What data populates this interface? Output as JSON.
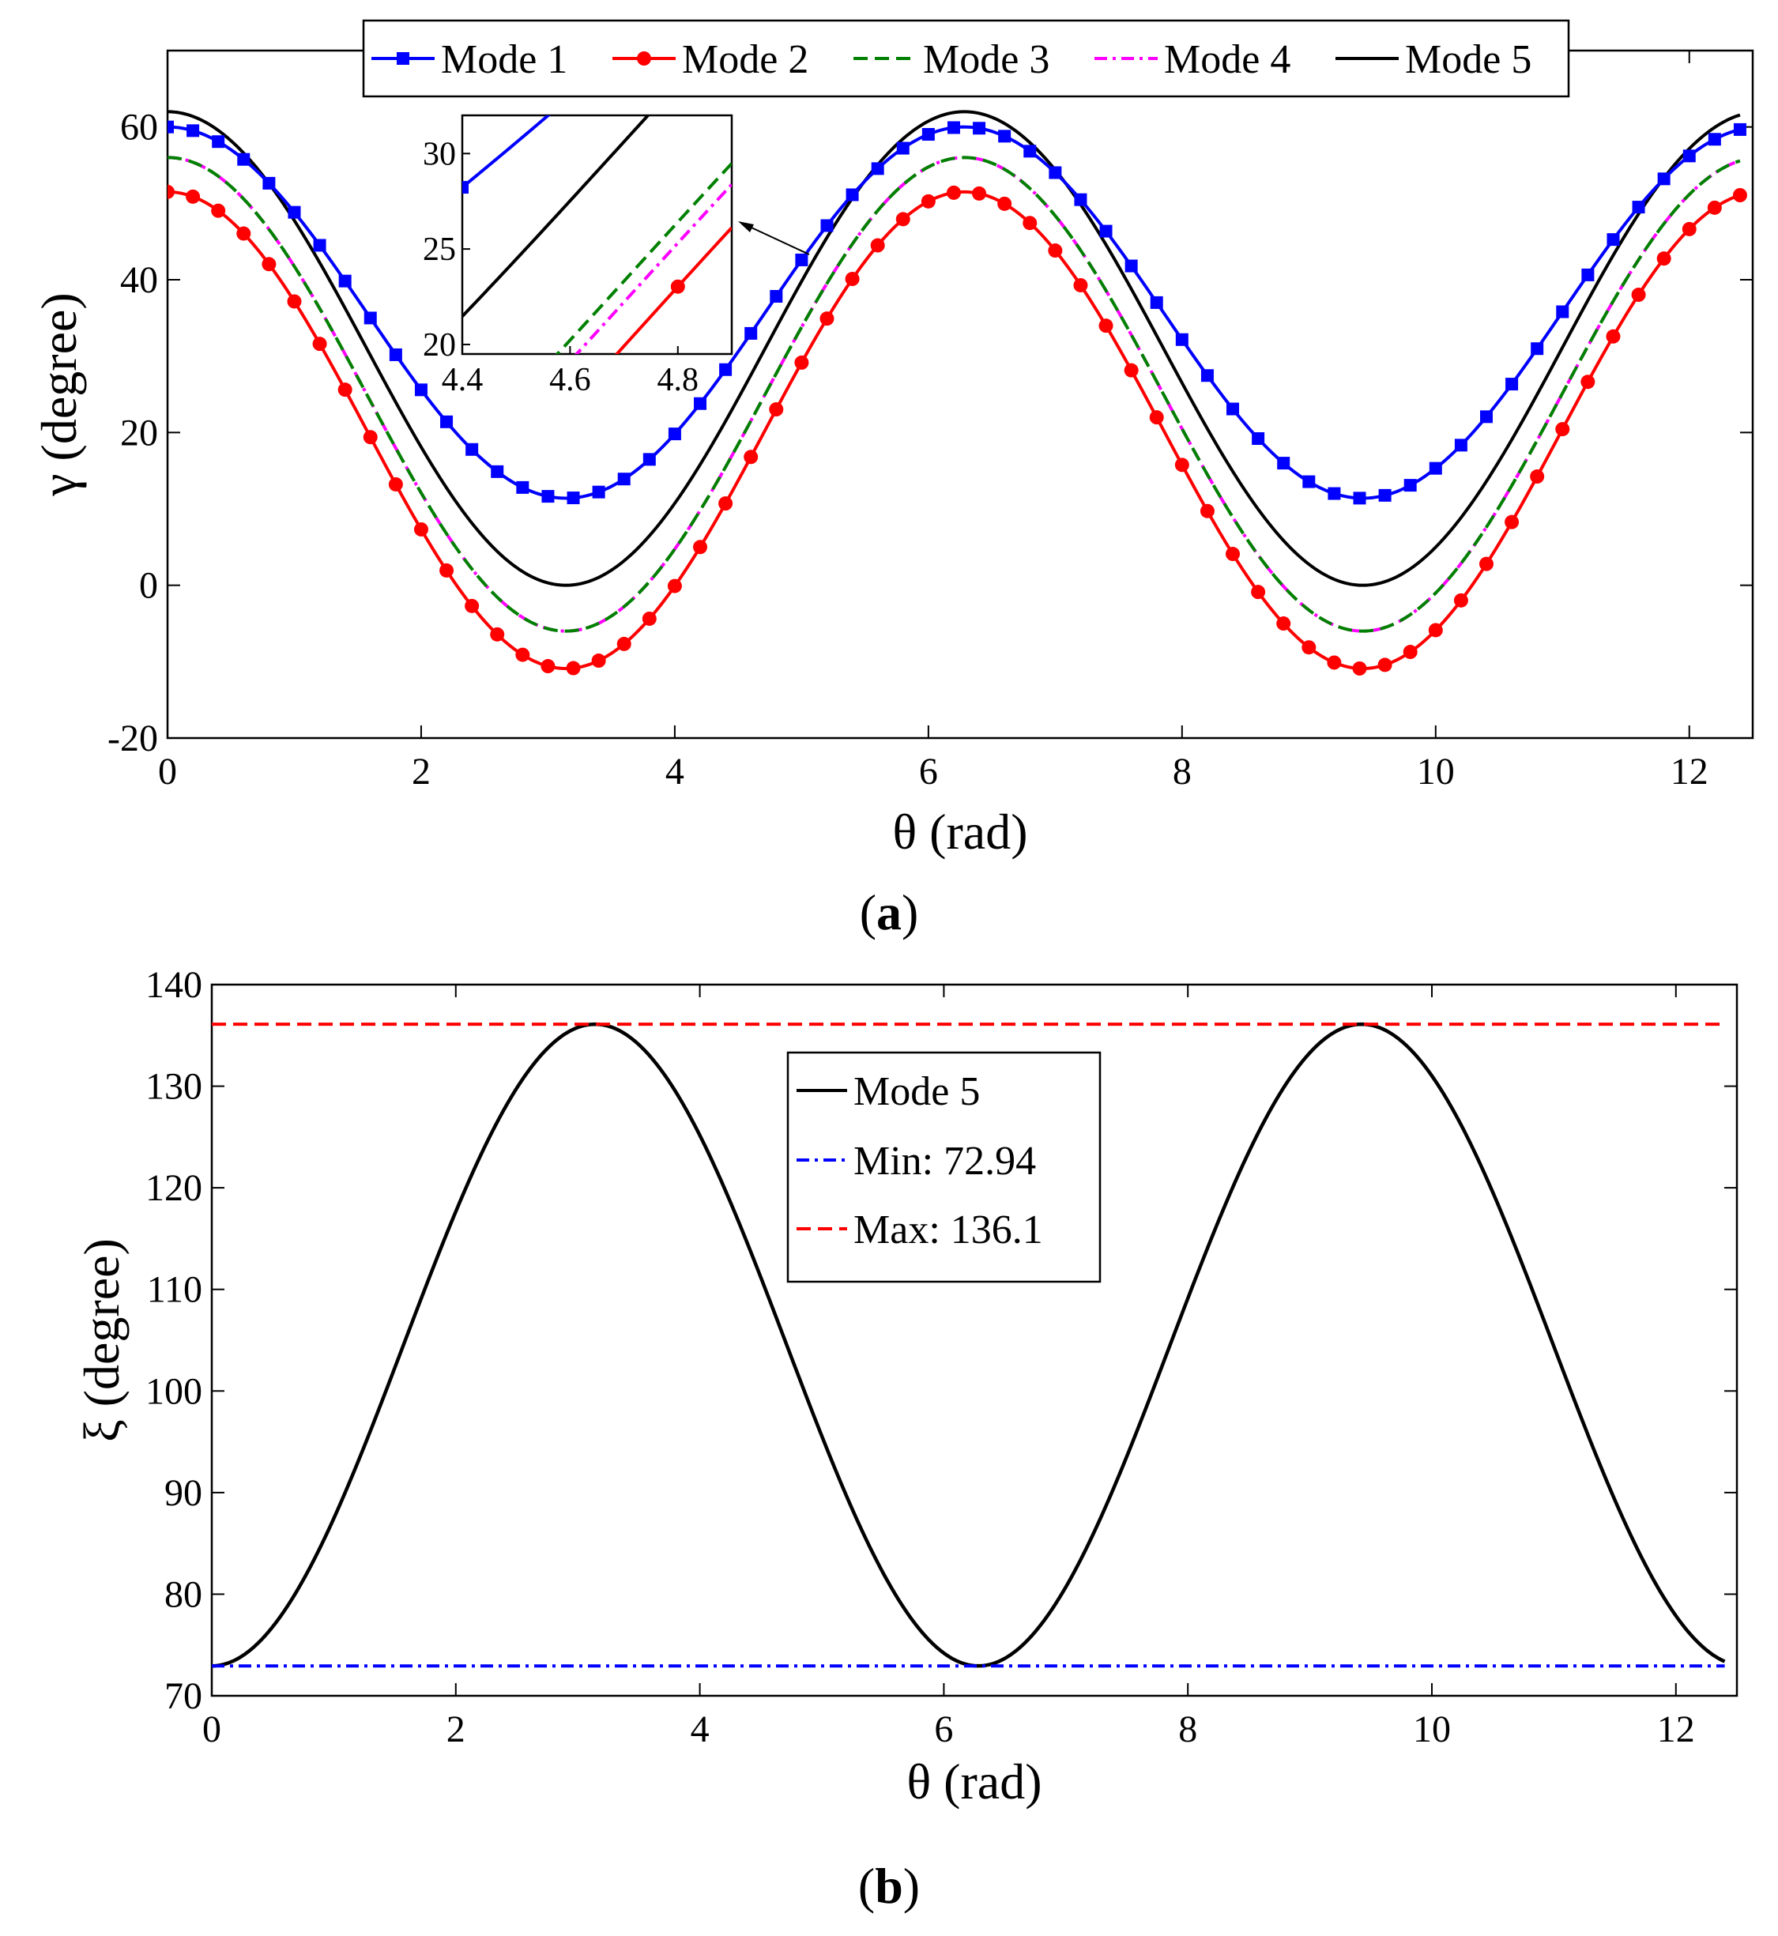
{
  "chart_data": [
    {
      "panel": "(a)",
      "panel_label": {
        "open": "(",
        "letter": "a",
        "close": ")"
      },
      "type": "line",
      "xlabel": "θ (rad)",
      "ylabel": "γ (degree)",
      "xlim": [
        0,
        12.5
      ],
      "ylim": [
        -20,
        70
      ],
      "xticks": [
        0,
        2,
        4,
        6,
        8,
        10,
        12
      ],
      "yticks": [
        -20,
        0,
        20,
        40,
        60
      ],
      "grid": false,
      "legend": {
        "placement": "top",
        "orientation": "horizontal"
      },
      "series_form": "mean + amplitude·cos(θ)",
      "series": [
        {
          "name": "Mode 1",
          "color": "#0000ff",
          "style": "solid",
          "marker": "square",
          "mean": 35.7,
          "amplitude": 24.3
        },
        {
          "name": "Mode 2",
          "color": "#ff0000",
          "style": "solid",
          "marker": "circle",
          "mean": 20.3,
          "amplitude": 31.2
        },
        {
          "name": "Mode 3",
          "color": "#008000",
          "style": "dashed",
          "marker": "none",
          "mean": 25.0,
          "amplitude": 31.0
        },
        {
          "name": "Mode 4",
          "color": "#ff00ff",
          "style": "dashdot",
          "marker": "none",
          "mean": 25.0,
          "amplitude": 31.0
        },
        {
          "name": "Mode 5",
          "color": "#000000",
          "style": "solid",
          "marker": "none",
          "mean": 31.0,
          "amplitude": 31.0
        }
      ],
      "inset": {
        "xlim": [
          4.4,
          4.9
        ],
        "ylim": [
          19.5,
          32
        ],
        "xticks": [
          4.4,
          4.6,
          4.8
        ],
        "xtick_labels": [
          "4.4",
          "4.6",
          "4.8"
        ],
        "yticks": [
          20,
          25,
          30
        ],
        "ytick_labels": [
          "20",
          "25",
          "30"
        ],
        "series_offsets": [
          {
            "name": "Mode 1",
            "offset": 0
          },
          {
            "name": "Mode 2",
            "offset": 0
          },
          {
            "name": "Mode 3",
            "offset": -1.3
          },
          {
            "name": "Mode 4",
            "offset": -2.4
          },
          {
            "name": "Mode 5",
            "offset": 0
          }
        ],
        "pointer_arrow": true
      }
    },
    {
      "panel": "(b)",
      "panel_label": {
        "open": "(",
        "letter": "b",
        "close": ")"
      },
      "type": "line",
      "xlabel": "θ (rad)",
      "ylabel": "ξ (degree)",
      "xlim": [
        0,
        12.5
      ],
      "ylim": [
        70,
        140
      ],
      "xticks": [
        0,
        2,
        4,
        6,
        8,
        10,
        12
      ],
      "yticks": [
        70,
        80,
        90,
        100,
        110,
        120,
        130,
        140
      ],
      "grid": false,
      "legend": {
        "placement": "center-top"
      },
      "series": [
        {
          "name": "Mode 5",
          "color": "#000000",
          "style": "solid",
          "form": "mean - amplitude·cos(θ)",
          "mean": 104.52,
          "amplitude": 31.58
        },
        {
          "name": "Min: 72.94",
          "color": "#0000ff",
          "style": "dashdot",
          "value": 72.94
        },
        {
          "name": "Max: 136.1",
          "color": "#ff0000",
          "style": "dashed",
          "value": 136.1
        }
      ]
    }
  ]
}
